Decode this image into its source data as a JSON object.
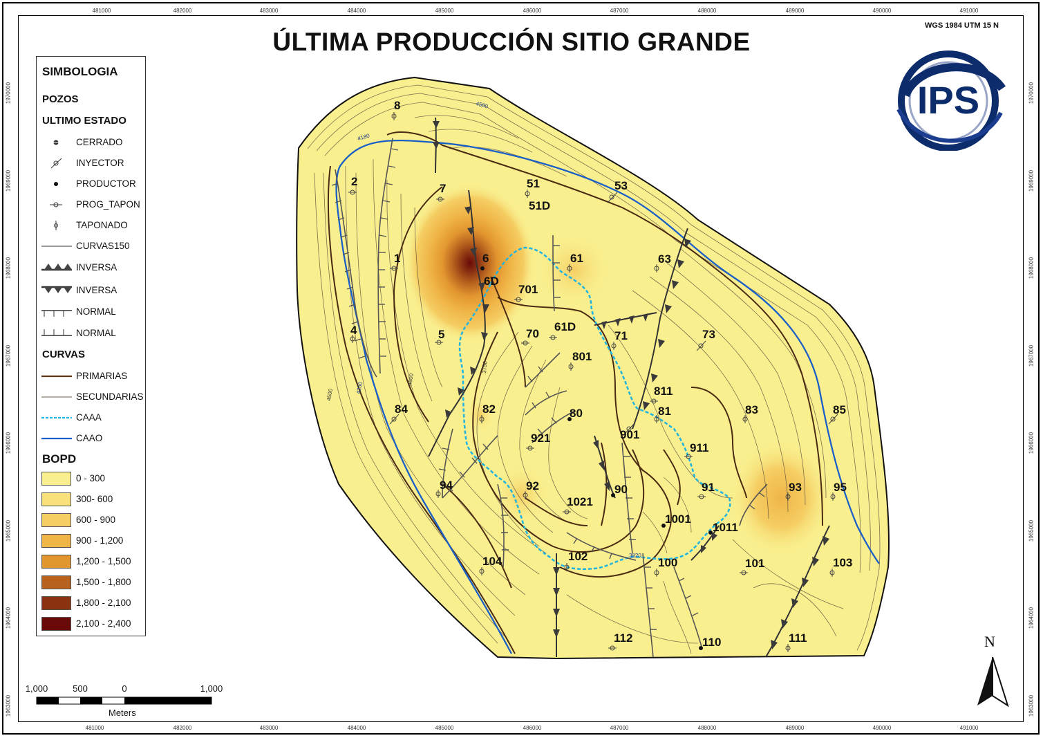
{
  "title": "ÚLTIMA PRODUCCIÓN SITIO GRANDE",
  "crs": "WGS 1984 UTM 15 N",
  "logo_text": "IPS",
  "north_label": "N",
  "x_ticks": [
    "481000",
    "482000",
    "483000",
    "484000",
    "485000",
    "486000",
    "487000",
    "488000",
    "489000",
    "490000",
    "491000"
  ],
  "y_ticks": [
    "1970000",
    "1969000",
    "1968000",
    "1967000",
    "1966000",
    "1965000",
    "1964000",
    "1963000"
  ],
  "legend": {
    "heading": "SIMBOLOGIA",
    "wells_heading": "POZOS",
    "status_heading": "ULTIMO ESTADO",
    "status_items": [
      {
        "label": "CERRADO",
        "icon": "closed-well-icon"
      },
      {
        "label": "INYECTOR",
        "icon": "injector-well-icon"
      },
      {
        "label": "PRODUCTOR",
        "icon": "producer-well-icon"
      },
      {
        "label": "PROG_TAPON",
        "icon": "planned-plug-well-icon"
      },
      {
        "label": "TAPONADO",
        "icon": "plugged-well-icon"
      }
    ],
    "line_items": [
      {
        "label": "CURVAS150",
        "icon": "contour-line-icon"
      },
      {
        "label": "INVERSA",
        "icon": "reverse-fault-up-icon"
      },
      {
        "label": "INVERSA",
        "icon": "reverse-fault-down-icon"
      },
      {
        "label": "NORMAL",
        "icon": "normal-fault-down-icon"
      },
      {
        "label": "NORMAL",
        "icon": "normal-fault-up-icon"
      }
    ],
    "curves_heading": "CURVAS",
    "curve_items": [
      {
        "label": "PRIMARIAS",
        "color": "#5a3418"
      },
      {
        "label": "SECUNDARIAS",
        "color": "#6b5a45"
      },
      {
        "label": "CAAA",
        "color": "#1fb4e0"
      },
      {
        "label": "CAAO",
        "color": "#1a5fc8"
      }
    ],
    "bopd_heading": "BOPD",
    "bopd_classes": [
      {
        "label": "0 - 300",
        "color": "#f9ef8e"
      },
      {
        "label": "300- 600",
        "color": "#f8e17a"
      },
      {
        "label": "600 - 900",
        "color": "#f5cd62"
      },
      {
        "label": "900 - 1,200",
        "color": "#f0b548"
      },
      {
        "label": "1,200 - 1,500",
        "color": "#e2962f"
      },
      {
        "label": "1,500 - 1,800",
        "color": "#b8621f"
      },
      {
        "label": "1,800 - 2,100",
        "color": "#8a3212"
      },
      {
        "label": "2,100 - 2,400",
        "color": "#6a0a08"
      }
    ]
  },
  "scale_bar": {
    "labels": [
      "1,000",
      "500",
      "0",
      "1,000"
    ],
    "unit": "Meters"
  },
  "contour_labels": [
    "4500",
    "4180",
    "4600",
    "4250",
    "4500",
    "3750",
    "3820"
  ],
  "wells": [
    {
      "id": "8",
      "status": "taponado"
    },
    {
      "id": "2",
      "status": "taponado"
    },
    {
      "id": "7",
      "status": "prog_tapon"
    },
    {
      "id": "51",
      "status": "taponado"
    },
    {
      "id": "51D",
      "status": "taponado"
    },
    {
      "id": "53",
      "status": "inyector"
    },
    {
      "id": "1",
      "status": "prog_tapon"
    },
    {
      "id": "6",
      "status": "productor"
    },
    {
      "id": "6D",
      "status": "productor"
    },
    {
      "id": "61",
      "status": "taponado"
    },
    {
      "id": "63",
      "status": "taponado"
    },
    {
      "id": "701",
      "status": "prog_tapon"
    },
    {
      "id": "4",
      "status": "taponado"
    },
    {
      "id": "5",
      "status": "prog_tapon"
    },
    {
      "id": "70",
      "status": "prog_tapon"
    },
    {
      "id": "61D",
      "status": "prog_tapon"
    },
    {
      "id": "71",
      "status": "taponado"
    },
    {
      "id": "73",
      "status": "inyector"
    },
    {
      "id": "801",
      "status": "taponado"
    },
    {
      "id": "811",
      "status": "prog_tapon"
    },
    {
      "id": "84",
      "status": "inyector"
    },
    {
      "id": "82",
      "status": "taponado"
    },
    {
      "id": "80",
      "status": "productor"
    },
    {
      "id": "81",
      "status": "taponado"
    },
    {
      "id": "83",
      "status": "taponado"
    },
    {
      "id": "85",
      "status": "inyector"
    },
    {
      "id": "921",
      "status": "prog_tapon"
    },
    {
      "id": "901",
      "status": "inyector"
    },
    {
      "id": "911",
      "status": "prog_tapon"
    },
    {
      "id": "94",
      "status": "taponado"
    },
    {
      "id": "92",
      "status": "taponado"
    },
    {
      "id": "1021",
      "status": "prog_tapon"
    },
    {
      "id": "90",
      "status": "productor"
    },
    {
      "id": "91",
      "status": "prog_tapon"
    },
    {
      "id": "93",
      "status": "taponado"
    },
    {
      "id": "95",
      "status": "taponado"
    },
    {
      "id": "1001",
      "status": "productor"
    },
    {
      "id": "1011",
      "status": "productor"
    },
    {
      "id": "104",
      "status": "taponado"
    },
    {
      "id": "102",
      "status": "taponado"
    },
    {
      "id": "100",
      "status": "taponado"
    },
    {
      "id": "101",
      "status": "prog_tapon"
    },
    {
      "id": "103",
      "status": "taponado"
    },
    {
      "id": "112",
      "status": "prog_tapon"
    },
    {
      "id": "110",
      "status": "productor"
    },
    {
      "id": "111",
      "status": "taponado"
    }
  ]
}
